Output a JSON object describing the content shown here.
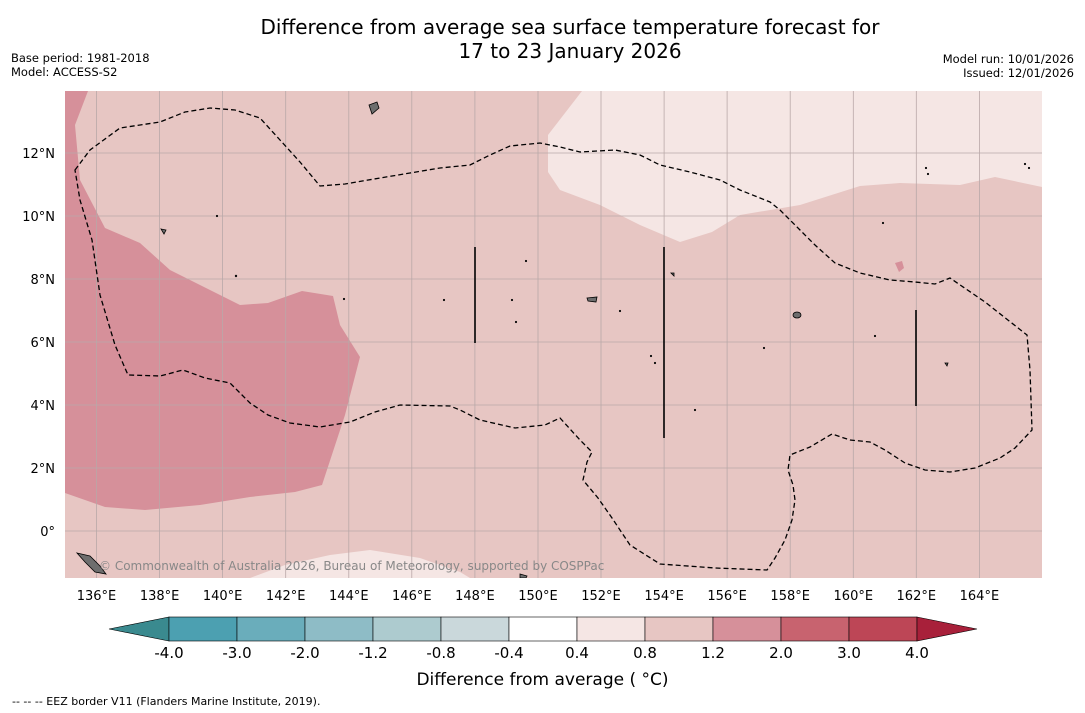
{
  "title": {
    "line1": "Difference from average sea surface temperature forecast for",
    "line2": "17 to 23 January 2026"
  },
  "meta": {
    "base_period": "Base period: 1981-2018",
    "model": "Model: ACCESS-S2",
    "model_run": "Model run: 10/01/2026",
    "issued": "Issued: 12/01/2026"
  },
  "map": {
    "lon_labels": [
      "136°E",
      "138°E",
      "140°E",
      "142°E",
      "144°E",
      "146°E",
      "148°E",
      "150°E",
      "152°E",
      "154°E",
      "156°E",
      "158°E",
      "160°E",
      "162°E",
      "164°E"
    ],
    "lat_labels": [
      "12°N",
      "10°N",
      "8°N",
      "6°N",
      "4°N",
      "2°N",
      "0°"
    ],
    "attribution": "© Commonwealth of Australia 2026, Bureau of Meteorology, supported by COSPPac",
    "colors": {
      "c_0_4_0_8": "#f5e6e4",
      "c_0_8_1_2": "#e7c6c3",
      "c_1_2_2_0": "#d6909a",
      "land": "#6e6e6e"
    }
  },
  "colorbar": {
    "ticks": [
      "-4.0",
      "-3.0",
      "-2.0",
      "-1.2",
      "-0.8",
      "-0.4",
      "0.4",
      "0.8",
      "1.2",
      "2.0",
      "3.0",
      "4.0"
    ],
    "colors": [
      "#4ca0b1",
      "#6aadbb",
      "#8ebcc6",
      "#adcbcf",
      "#cad8db",
      "#ffffff",
      "#f5e6e4",
      "#e7c6c3",
      "#d6909a",
      "#c8636f",
      "#bd4656"
    ],
    "under_color": "#3a8a8f",
    "over_color": "#a8203a",
    "label": "Difference from average ( °C)"
  },
  "footnote": "--  --  -- EEZ border V11 (Flanders Marine Institute, 2019)."
}
